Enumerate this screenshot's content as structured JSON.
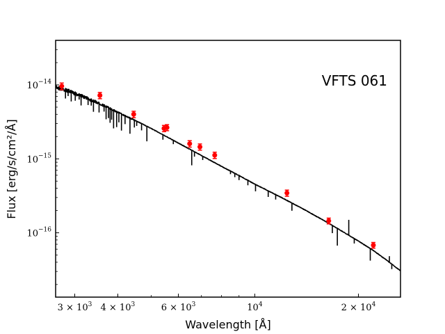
{
  "chart_data": {
    "type": "scatter",
    "title": "",
    "annotation": "VFTS 061",
    "xlabel": "Wavelength [Å]",
    "ylabel": "Flux [erg/s/cm²/Å]",
    "xscale": "log",
    "yscale": "log",
    "xlim": [
      2640,
      26500
    ],
    "ylim": [
      1.35e-17,
      4e-14
    ],
    "x_ticks": [
      {
        "value": 3000,
        "base": "3 × 10",
        "exp": "3"
      },
      {
        "value": 4000,
        "base": "4 × 10",
        "exp": "3"
      },
      {
        "value": 6000,
        "base": "6 × 10",
        "exp": "3"
      },
      {
        "value": 10000,
        "base": "10",
        "exp": "4"
      },
      {
        "value": 20000,
        "base": "2 × 10",
        "exp": "4"
      }
    ],
    "y_ticks": [
      {
        "value": 1e-14,
        "base": "10",
        "exp": "−14"
      },
      {
        "value": 1e-15,
        "base": "10",
        "exp": "−15"
      },
      {
        "value": 1e-16,
        "base": "10",
        "exp": "−16"
      }
    ],
    "series": [
      {
        "name": "model spectrum",
        "style": "line",
        "color": "#000000",
        "x": [
          2650,
          2800,
          3000,
          3200,
          3500,
          4000,
          4500,
          5000,
          5500,
          6000,
          7000,
          8000,
          9000,
          10000,
          12000,
          14000,
          16000,
          18000,
          20000,
          22000,
          24000,
          26000,
          26500
        ],
        "y": [
          1e-14,
          9.2e-15,
          8.2e-15,
          7.2e-15,
          6e-15,
          4.4e-15,
          3.35e-15,
          2.6e-15,
          2.05e-15,
          1.65e-15,
          1.12e-15,
          8e-16,
          6e-16,
          4.6e-16,
          3e-16,
          2.05e-16,
          1.45e-16,
          1.05e-16,
          7.8e-17,
          5.9e-17,
          4.4e-17,
          3.3e-17,
          3.1e-17
        ],
        "absorption_lines": [
          {
            "x": 2820,
            "depth": 0.72
          },
          {
            "x": 2870,
            "depth": 0.8
          },
          {
            "x": 2930,
            "depth": 0.7
          },
          {
            "x": 3010,
            "depth": 0.75
          },
          {
            "x": 3090,
            "depth": 0.82
          },
          {
            "x": 3130,
            "depth": 0.7
          },
          {
            "x": 3280,
            "depth": 0.78
          },
          {
            "x": 3350,
            "depth": 0.8
          },
          {
            "x": 3400,
            "depth": 0.68
          },
          {
            "x": 3530,
            "depth": 0.72
          },
          {
            "x": 3650,
            "depth": 0.8
          },
          {
            "x": 3700,
            "depth": 0.65
          },
          {
            "x": 3760,
            "depth": 0.7
          },
          {
            "x": 3800,
            "depth": 0.62
          },
          {
            "x": 3840,
            "depth": 0.7
          },
          {
            "x": 3890,
            "depth": 0.55
          },
          {
            "x": 3970,
            "depth": 0.6
          },
          {
            "x": 4030,
            "depth": 0.72
          },
          {
            "x": 4100,
            "depth": 0.58
          },
          {
            "x": 4200,
            "depth": 0.75
          },
          {
            "x": 4340,
            "depth": 0.6
          },
          {
            "x": 4470,
            "depth": 0.78
          },
          {
            "x": 4540,
            "depth": 0.85
          },
          {
            "x": 4690,
            "depth": 0.8
          },
          {
            "x": 4860,
            "depth": 0.62
          },
          {
            "x": 5410,
            "depth": 0.85
          },
          {
            "x": 5800,
            "depth": 0.88
          },
          {
            "x": 6560,
            "depth": 0.62
          },
          {
            "x": 6680,
            "depth": 0.85
          },
          {
            "x": 7060,
            "depth": 0.88
          },
          {
            "x": 8500,
            "depth": 0.9
          },
          {
            "x": 8750,
            "depth": 0.88
          },
          {
            "x": 9000,
            "depth": 0.86
          },
          {
            "x": 9550,
            "depth": 0.85
          },
          {
            "x": 10050,
            "depth": 0.8
          },
          {
            "x": 10940,
            "depth": 0.82
          },
          {
            "x": 11500,
            "depth": 0.85
          },
          {
            "x": 12820,
            "depth": 0.78
          },
          {
            "x": 16800,
            "depth": 0.78
          },
          {
            "x": 17370,
            "depth": 0.58
          },
          {
            "x": 19450,
            "depth": 0.85
          },
          {
            "x": 21650,
            "depth": 0.68
          },
          {
            "x": 25000,
            "depth": 0.85
          }
        ],
        "emission_lines": [
          {
            "x": 18750,
            "height": 1.6
          },
          {
            "x": 24600,
            "height": 1.2
          }
        ]
      },
      {
        "name": "photometry",
        "style": "errorbar",
        "color": "#ff0000",
        "x": [
          2750,
          3550,
          4450,
          5450,
          5560,
          6470,
          6930,
          7650,
          12400,
          16400,
          22100
        ],
        "y": [
          9.6e-15,
          7.2e-15,
          4e-15,
          2.58e-15,
          2.65e-15,
          1.6e-15,
          1.45e-15,
          1.12e-15,
          3.45e-16,
          1.45e-16,
          6.8e-17
        ],
        "yerr": [
          1e-15,
          7e-16,
          4e-16,
          2.5e-16,
          2.5e-16,
          1.6e-16,
          1.4e-16,
          1.1e-16,
          3.3e-17,
          1.3e-17,
          6e-18
        ]
      }
    ]
  }
}
